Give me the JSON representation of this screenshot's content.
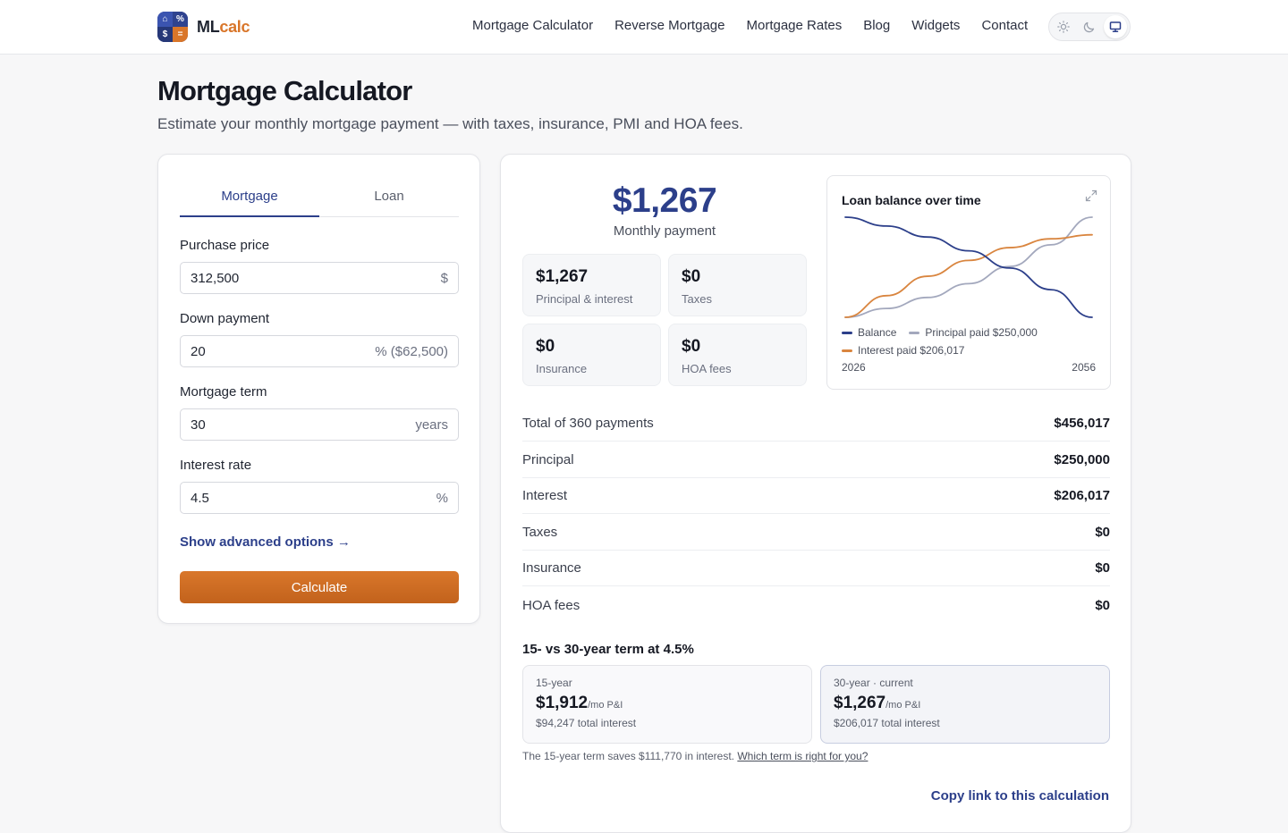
{
  "header": {
    "logo_q1": "⌂",
    "logo_q2": "%",
    "logo_q3": "$",
    "logo_q4": "=",
    "logo_ml": "ML",
    "logo_calc": "calc",
    "nav": [
      "Mortgage Calculator",
      "Reverse Mortgage",
      "Mortgage Rates",
      "Blog",
      "Widgets",
      "Contact"
    ],
    "theme_icons": [
      "sun-icon",
      "moon-icon",
      "monitor-icon"
    ],
    "theme_active": "monitor-icon"
  },
  "page": {
    "title": "Mortgage Calculator",
    "subtitle": "Estimate your monthly mortgage payment — with taxes, insurance, PMI and HOA fees."
  },
  "form": {
    "tabs": [
      "Mortgage",
      "Loan"
    ],
    "active_tab": "Mortgage",
    "purchase_price": {
      "label": "Purchase price",
      "value": "312,500",
      "suffix": "$"
    },
    "down_payment": {
      "label": "Down payment",
      "value": "20",
      "suffix": "% ($62,500)"
    },
    "term": {
      "label": "Mortgage term",
      "value": "30",
      "suffix": "years"
    },
    "rate": {
      "label": "Interest rate",
      "value": "4.5",
      "suffix": "%"
    },
    "advanced_link": "Show advanced options →",
    "calculate_label": "Calculate"
  },
  "results": {
    "monthly_payment": "$1,267",
    "monthly_payment_label": "Monthly payment",
    "breakdown": [
      {
        "value": "$1,267",
        "label": "Principal & interest"
      },
      {
        "value": "$0",
        "label": "Taxes"
      },
      {
        "value": "$0",
        "label": "Insurance"
      },
      {
        "value": "$0",
        "label": "HOA fees"
      }
    ],
    "summary": [
      {
        "label": "Total of 360 payments",
        "value": "$456,017"
      },
      {
        "label": "Principal",
        "value": "$250,000"
      },
      {
        "label": "Interest",
        "value": "$206,017"
      },
      {
        "label": "Taxes",
        "value": "$0"
      },
      {
        "label": "Insurance",
        "value": "$0"
      },
      {
        "label": "HOA fees",
        "value": "$0"
      }
    ],
    "compare_title": "15- vs 30-year term at 4.5%",
    "compare": [
      {
        "heading": "15-year",
        "amount": "$1,912",
        "unit": "/mo P&I",
        "total": "$94,247 total interest"
      },
      {
        "heading": "30-year · current",
        "amount": "$1,267",
        "unit": "/mo P&I",
        "total": "$206,017 total interest"
      }
    ],
    "note_text": "The 15-year term saves $111,770 in interest. ",
    "note_link": "Which term is right for you?",
    "copy_link": "Copy link to this calculation"
  },
  "chart_data": {
    "type": "line",
    "title": "Loan balance over time",
    "x": [
      2026,
      2031,
      2036,
      2041,
      2046,
      2051,
      2056
    ],
    "x_tick_labels": [
      "2026",
      "2056"
    ],
    "series": [
      {
        "name": "Balance",
        "color": "#2c3f8a",
        "values": [
          250000,
          228000,
          200500,
          166000,
          123000,
          69000,
          0
        ]
      },
      {
        "name": "Principal paid $250,000",
        "color": "#a3a8bd",
        "values": [
          0,
          22000,
          49500,
          84000,
          127000,
          181000,
          250000
        ]
      },
      {
        "name": "Interest paid $206,017",
        "color": "#d9853f",
        "values": [
          0,
          54000,
          102500,
          142000,
          174000,
          196000,
          206017
        ]
      }
    ],
    "ylim": [
      0,
      250000
    ],
    "grid": false,
    "legend": "bottom"
  }
}
